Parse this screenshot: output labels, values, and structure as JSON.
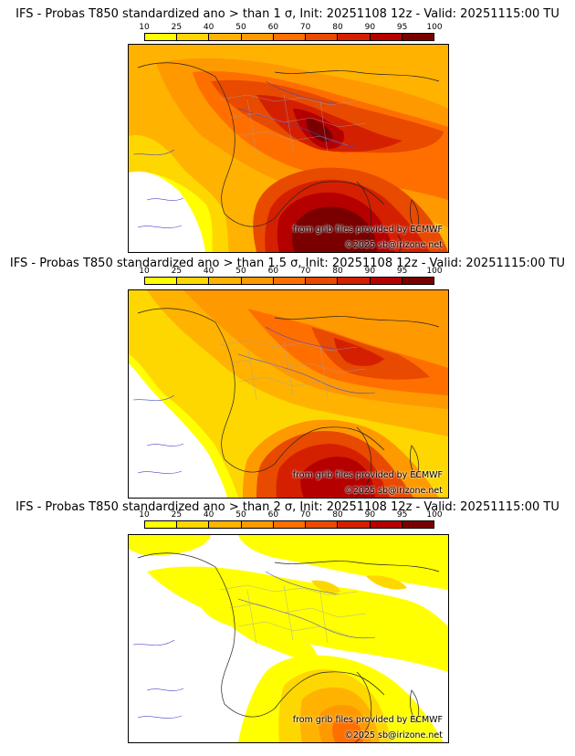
{
  "legend": {
    "ticks": [
      "10",
      "25",
      "40",
      "50",
      "60",
      "70",
      "80",
      "90",
      "95",
      "100"
    ],
    "colors": [
      "#ffff00",
      "#ffd700",
      "#ffb300",
      "#ff9900",
      "#ff6f00",
      "#e84a00",
      "#d42000",
      "#b50000",
      "#7a0000"
    ]
  },
  "panels": [
    {
      "title": "IFS - Probas T850  standardized ano > than 1 σ, Init: 20251108 12z - Valid: 20251115:00 TU",
      "credit_source": "from grib files provided by ECMWF",
      "credit_copyright": "©2025 sb@irizone.net"
    },
    {
      "title": "IFS - Probas T850  standardized ano > than 1.5 σ, Init: 20251108 12z - Valid: 20251115:00 TU",
      "credit_source": "from grib files provided by ECMWF",
      "credit_copyright": "©2025 sb@irizone.net"
    },
    {
      "title": "IFS - Probas T850  standardized ano > than 2 σ, Init: 20251108 12z - Valid: 20251115:00 TU",
      "credit_source": "from grib files provided by ECMWF",
      "credit_copyright": "©2025 sb@irizone.net"
    }
  ]
}
